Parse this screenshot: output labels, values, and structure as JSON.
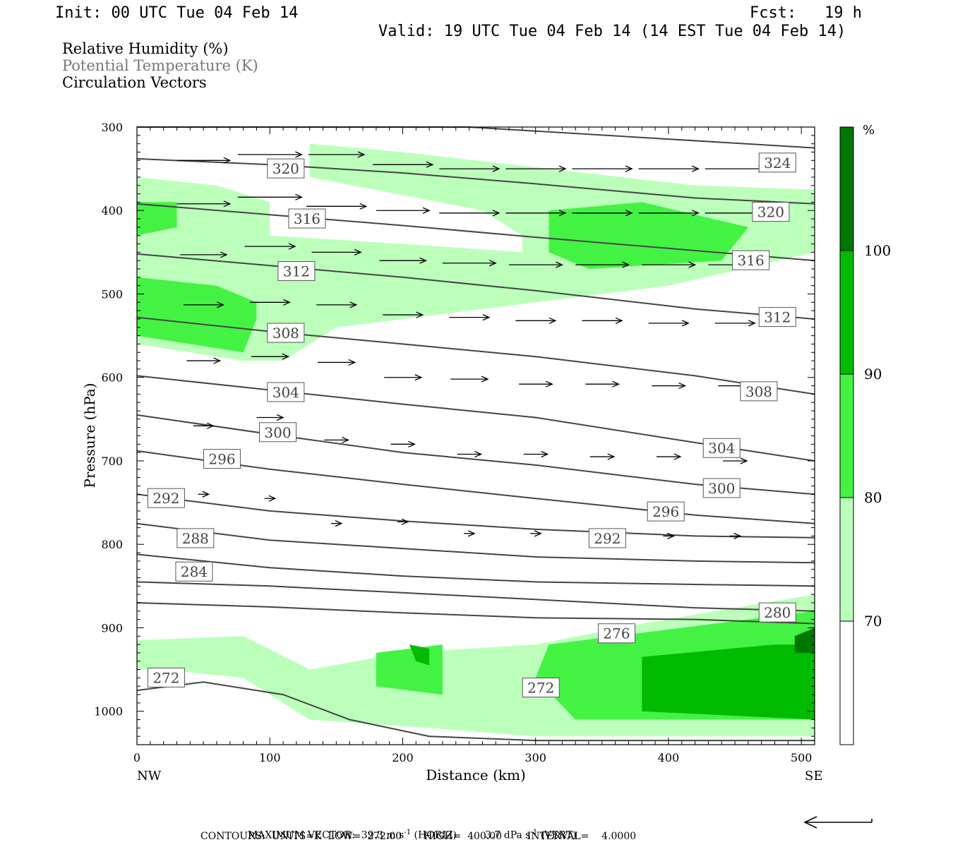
{
  "header": {
    "init": "Init: 00 UTC Tue 04 Feb 14",
    "fcst": "Fcst:   19 h",
    "valid": "Valid: 19 UTC Tue 04 Feb 14 (14 EST Tue 04 Feb 14)"
  },
  "legend_lines": {
    "rh": "Relative Humidity (%)",
    "theta": "Potential Temperature (K)",
    "vectors": "Circulation Vectors"
  },
  "colors": {
    "rh70": "#bbffbb",
    "rh80": "#44f244",
    "rh90": "#00bb00",
    "rh100": "#007700",
    "contour": "#444444",
    "theta_text": "#777777"
  },
  "chart_data": {
    "type": "cross-section",
    "xlabel": "Distance (km)",
    "ylabel": "Pressure (hPa)",
    "xlim": [
      0,
      510
    ],
    "ylim": [
      300,
      1040
    ],
    "x_ticks": [
      "0",
      "100",
      "200",
      "300",
      "400",
      "500"
    ],
    "y_ticks": [
      "300",
      "400",
      "500",
      "600",
      "700",
      "800",
      "900",
      "1000"
    ],
    "x_end_labels": {
      "left": "NW",
      "right": "SE"
    },
    "colorbar": {
      "unit": "%",
      "levels": [
        "70",
        "80",
        "90",
        "100"
      ]
    },
    "theta_contours": [
      {
        "label": "324",
        "points": [
          [
            0,
            300
          ],
          [
            250,
            300
          ],
          [
            510,
            325
          ]
        ]
      },
      {
        "label": "320",
        "points": [
          [
            0,
            338
          ],
          [
            100,
            345
          ],
          [
            200,
            355
          ],
          [
            300,
            368
          ],
          [
            420,
            385
          ],
          [
            510,
            392
          ]
        ]
      },
      {
        "label": "316",
        "points": [
          [
            0,
            392
          ],
          [
            100,
            405
          ],
          [
            200,
            418
          ],
          [
            300,
            432
          ],
          [
            420,
            448
          ],
          [
            510,
            460
          ]
        ]
      },
      {
        "label": "312",
        "points": [
          [
            0,
            452
          ],
          [
            100,
            466
          ],
          [
            200,
            480
          ],
          [
            300,
            496
          ],
          [
            420,
            518
          ],
          [
            510,
            530
          ]
        ]
      },
      {
        "label": "308",
        "points": [
          [
            0,
            528
          ],
          [
            100,
            545
          ],
          [
            200,
            560
          ],
          [
            300,
            575
          ],
          [
            420,
            598
          ],
          [
            510,
            620
          ]
        ]
      },
      {
        "label": "304",
        "points": [
          [
            0,
            598
          ],
          [
            100,
            615
          ],
          [
            200,
            632
          ],
          [
            300,
            648
          ],
          [
            420,
            678
          ],
          [
            510,
            700
          ]
        ]
      },
      {
        "label": "300",
        "points": [
          [
            0,
            645
          ],
          [
            100,
            668
          ],
          [
            200,
            690
          ],
          [
            300,
            705
          ],
          [
            420,
            728
          ],
          [
            510,
            740
          ]
        ]
      },
      {
        "label": "296",
        "points": [
          [
            0,
            688
          ],
          [
            100,
            710
          ],
          [
            200,
            728
          ],
          [
            300,
            745
          ],
          [
            420,
            765
          ],
          [
            510,
            775
          ]
        ]
      },
      {
        "label": "292",
        "points": [
          [
            0,
            740
          ],
          [
            100,
            760
          ],
          [
            200,
            772
          ],
          [
            300,
            782
          ],
          [
            420,
            790
          ],
          [
            510,
            792
          ]
        ]
      },
      {
        "label": "288",
        "points": [
          [
            0,
            775
          ],
          [
            100,
            795
          ],
          [
            200,
            805
          ],
          [
            300,
            815
          ],
          [
            420,
            820
          ],
          [
            510,
            822
          ]
        ]
      },
      {
        "label": "284",
        "points": [
          [
            0,
            812
          ],
          [
            100,
            828
          ],
          [
            200,
            838
          ],
          [
            300,
            845
          ],
          [
            420,
            848
          ],
          [
            510,
            850
          ]
        ]
      },
      {
        "label": "280",
        "points": [
          [
            0,
            845
          ],
          [
            100,
            850
          ],
          [
            200,
            858
          ],
          [
            300,
            866
          ],
          [
            420,
            876
          ],
          [
            510,
            880
          ]
        ]
      },
      {
        "label": "276",
        "points": [
          [
            0,
            870
          ],
          [
            100,
            875
          ],
          [
            200,
            882
          ],
          [
            300,
            888
          ],
          [
            420,
            890
          ],
          [
            510,
            895
          ]
        ]
      },
      {
        "label": "272",
        "points": [
          [
            0,
            975
          ],
          [
            50,
            965
          ],
          [
            110,
            980
          ],
          [
            160,
            1010
          ],
          [
            220,
            1030
          ],
          [
            300,
            1035
          ],
          [
            510,
            1035
          ]
        ]
      }
    ],
    "contour_labels": [
      {
        "text": "324",
        "x": 482,
        "y": 343
      },
      {
        "text": "320",
        "x": 112,
        "y": 350
      },
      {
        "text": "320",
        "x": 477,
        "y": 402
      },
      {
        "text": "316",
        "x": 128,
        "y": 410
      },
      {
        "text": "316",
        "x": 462,
        "y": 460
      },
      {
        "text": "312",
        "x": 120,
        "y": 473
      },
      {
        "text": "312",
        "x": 482,
        "y": 528
      },
      {
        "text": "308",
        "x": 112,
        "y": 547
      },
      {
        "text": "308",
        "x": 468,
        "y": 617
      },
      {
        "text": "304",
        "x": 112,
        "y": 618
      },
      {
        "text": "304",
        "x": 440,
        "y": 685
      },
      {
        "text": "300",
        "x": 106,
        "y": 666
      },
      {
        "text": "300",
        "x": 440,
        "y": 733
      },
      {
        "text": "296",
        "x": 64,
        "y": 698
      },
      {
        "text": "296",
        "x": 398,
        "y": 761
      },
      {
        "text": "292",
        "x": 22,
        "y": 745
      },
      {
        "text": "292",
        "x": 354,
        "y": 793
      },
      {
        "text": "288",
        "x": 44,
        "y": 793
      },
      {
        "text": "284",
        "x": 43,
        "y": 833
      },
      {
        "text": "280",
        "x": 482,
        "y": 882
      },
      {
        "text": "276",
        "x": 361,
        "y": 907
      },
      {
        "text": "272",
        "x": 22,
        "y": 960
      },
      {
        "text": "272",
        "x": 304,
        "y": 972
      }
    ],
    "wind_vectors": [
      {
        "x": 50,
        "p": 340,
        "u": 40
      },
      {
        "x": 100,
        "p": 333,
        "u": 48
      },
      {
        "x": 150,
        "p": 333,
        "u": 42
      },
      {
        "x": 200,
        "p": 345,
        "u": 45
      },
      {
        "x": 250,
        "p": 350,
        "u": 45
      },
      {
        "x": 300,
        "p": 350,
        "u": 45
      },
      {
        "x": 350,
        "p": 350,
        "u": 45
      },
      {
        "x": 400,
        "p": 350,
        "u": 45
      },
      {
        "x": 450,
        "p": 350,
        "u": 45
      },
      {
        "x": 50,
        "p": 392,
        "u": 40
      },
      {
        "x": 100,
        "p": 384,
        "u": 48
      },
      {
        "x": 150,
        "p": 395,
        "u": 45
      },
      {
        "x": 200,
        "p": 400,
        "u": 40
      },
      {
        "x": 250,
        "p": 403,
        "u": 45
      },
      {
        "x": 300,
        "p": 403,
        "u": 45
      },
      {
        "x": 350,
        "p": 403,
        "u": 45
      },
      {
        "x": 400,
        "p": 403,
        "u": 45
      },
      {
        "x": 450,
        "p": 403,
        "u": 45
      },
      {
        "x": 50,
        "p": 453,
        "u": 35
      },
      {
        "x": 100,
        "p": 443,
        "u": 38
      },
      {
        "x": 150,
        "p": 450,
        "u": 37
      },
      {
        "x": 200,
        "p": 460,
        "u": 35
      },
      {
        "x": 250,
        "p": 463,
        "u": 40
      },
      {
        "x": 300,
        "p": 465,
        "u": 40
      },
      {
        "x": 350,
        "p": 465,
        "u": 40
      },
      {
        "x": 400,
        "p": 465,
        "u": 40
      },
      {
        "x": 450,
        "p": 465,
        "u": 40
      },
      {
        "x": 50,
        "p": 513,
        "u": 30
      },
      {
        "x": 100,
        "p": 510,
        "u": 30
      },
      {
        "x": 150,
        "p": 513,
        "u": 30
      },
      {
        "x": 200,
        "p": 525,
        "u": 30
      },
      {
        "x": 250,
        "p": 528,
        "u": 30
      },
      {
        "x": 300,
        "p": 532,
        "u": 30
      },
      {
        "x": 350,
        "p": 532,
        "u": 30
      },
      {
        "x": 400,
        "p": 535,
        "u": 30
      },
      {
        "x": 450,
        "p": 535,
        "u": 30
      },
      {
        "x": 50,
        "p": 580,
        "u": 25
      },
      {
        "x": 100,
        "p": 575,
        "u": 28
      },
      {
        "x": 150,
        "p": 582,
        "u": 28
      },
      {
        "x": 200,
        "p": 600,
        "u": 28
      },
      {
        "x": 250,
        "p": 602,
        "u": 28
      },
      {
        "x": 300,
        "p": 608,
        "u": 25
      },
      {
        "x": 350,
        "p": 608,
        "u": 25
      },
      {
        "x": 400,
        "p": 610,
        "u": 25
      },
      {
        "x": 450,
        "p": 610,
        "u": 25
      },
      {
        "x": 50,
        "p": 658,
        "u": 15
      },
      {
        "x": 100,
        "p": 648,
        "u": 20
      },
      {
        "x": 150,
        "p": 675,
        "u": 18
      },
      {
        "x": 200,
        "p": 680,
        "u": 18
      },
      {
        "x": 250,
        "p": 692,
        "u": 18
      },
      {
        "x": 300,
        "p": 692,
        "u": 18
      },
      {
        "x": 350,
        "p": 695,
        "u": 18
      },
      {
        "x": 400,
        "p": 695,
        "u": 18
      },
      {
        "x": 450,
        "p": 700,
        "u": 18
      },
      {
        "x": 50,
        "p": 740,
        "u": 8
      },
      {
        "x": 100,
        "p": 745,
        "u": 8
      },
      {
        "x": 150,
        "p": 775,
        "u": 8
      },
      {
        "x": 200,
        "p": 773,
        "u": 8
      },
      {
        "x": 250,
        "p": 787,
        "u": 8
      },
      {
        "x": 300,
        "p": 787,
        "u": 8
      },
      {
        "x": 350,
        "p": 790,
        "u": 8
      },
      {
        "x": 400,
        "p": 790,
        "u": 8
      },
      {
        "x": 450,
        "p": 790,
        "u": 8
      }
    ],
    "rh_shading": [
      {
        "level": "70",
        "points": [
          [
            0,
            360
          ],
          [
            60,
            370
          ],
          [
            100,
            390
          ],
          [
            100,
            430
          ],
          [
            200,
            440
          ],
          [
            290,
            450
          ],
          [
            290,
            430
          ],
          [
            260,
            400
          ],
          [
            130,
            360
          ],
          [
            130,
            320
          ],
          [
            200,
            330
          ],
          [
            420,
            370
          ],
          [
            510,
            375
          ],
          [
            510,
            450
          ],
          [
            400,
            490
          ],
          [
            300,
            510
          ],
          [
            150,
            540
          ],
          [
            110,
            580
          ],
          [
            80,
            580
          ],
          [
            0,
            560
          ]
        ]
      },
      {
        "level": "80",
        "points": [
          [
            0,
            390
          ],
          [
            30,
            390
          ],
          [
            30,
            420
          ],
          [
            0,
            430
          ]
        ]
      },
      {
        "level": "80",
        "points": [
          [
            0,
            480
          ],
          [
            60,
            490
          ],
          [
            90,
            510
          ],
          [
            90,
            530
          ],
          [
            80,
            570
          ],
          [
            0,
            550
          ]
        ]
      },
      {
        "level": "80",
        "points": [
          [
            310,
            400
          ],
          [
            380,
            390
          ],
          [
            460,
            420
          ],
          [
            440,
            460
          ],
          [
            340,
            470
          ],
          [
            310,
            450
          ]
        ]
      },
      {
        "level": "70",
        "points": [
          [
            0,
            915
          ],
          [
            80,
            910
          ],
          [
            130,
            950
          ],
          [
            200,
            930
          ],
          [
            300,
            920
          ],
          [
            380,
            895
          ],
          [
            510,
            860
          ],
          [
            510,
            1030
          ],
          [
            300,
            1030
          ],
          [
            220,
            1020
          ],
          [
            130,
            1010
          ],
          [
            80,
            960
          ],
          [
            20,
            950
          ],
          [
            0,
            950
          ]
        ]
      },
      {
        "level": "80",
        "points": [
          [
            310,
            920
          ],
          [
            410,
            900
          ],
          [
            510,
            880
          ],
          [
            510,
            1010
          ],
          [
            330,
            1010
          ],
          [
            300,
            960
          ]
        ]
      },
      {
        "level": "80",
        "points": [
          [
            180,
            930
          ],
          [
            230,
            920
          ],
          [
            230,
            980
          ],
          [
            180,
            970
          ]
        ]
      },
      {
        "level": "90",
        "points": [
          [
            380,
            935
          ],
          [
            480,
            920
          ],
          [
            510,
            920
          ],
          [
            510,
            1010
          ],
          [
            380,
            1000
          ]
        ]
      },
      {
        "level": "90",
        "points": [
          [
            205,
            920
          ],
          [
            220,
            925
          ],
          [
            220,
            945
          ],
          [
            210,
            940
          ]
        ]
      },
      {
        "level": "100",
        "points": [
          [
            495,
            910
          ],
          [
            510,
            900
          ],
          [
            510,
            930
          ],
          [
            495,
            930
          ]
        ]
      }
    ]
  },
  "footer": {
    "max_vector_label": "MAXIMUM VECTOR:",
    "max_vector_horiz": "39.3 m s",
    "horiz_unit": "(HORIZ)",
    "max_vector_vert": "3.7 dPa s",
    "vert_unit": "(VERT)",
    "exponent": "-1",
    "contours_line": "CONTOURS:  UNITS=K  LOW=  272.00       HIGH=  400.00        INTERVAL=    4.0000"
  }
}
